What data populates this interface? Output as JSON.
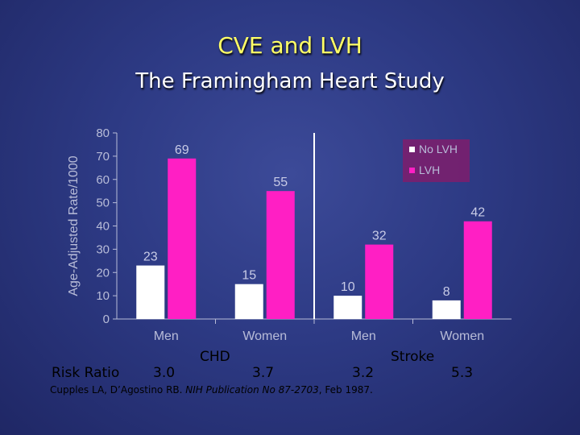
{
  "slide": {
    "title": "CVE and LVH",
    "subtitle": "The Framingham Heart Study",
    "risk_ratio_label": "Risk Ratio",
    "risk_ratios": [
      "3.0",
      "3.7",
      "3.2",
      "5.3"
    ],
    "groups": [
      "CHD",
      "Stroke"
    ],
    "citation_authors": "Cupples LA, D’Agostino RB. ",
    "citation_pub": "NIH Publication No 87-2703",
    "citation_date": ", Feb 1987."
  },
  "colors": {
    "no_lvh": "#ffffff",
    "lvh": "#ff1fc4",
    "axis_text": "#b8bcd8",
    "value_text": "#c8cbe6"
  },
  "chart_data": {
    "type": "bar",
    "categories": [
      "Men",
      "Women",
      "Men",
      "Women"
    ],
    "series": [
      {
        "name": "No LVH",
        "values": [
          23,
          15,
          10,
          8
        ]
      },
      {
        "name": "LVH",
        "values": [
          69,
          55,
          32,
          42
        ]
      }
    ],
    "ylabel": "Age-Adjusted Rate/1000",
    "ylim": [
      0,
      80
    ],
    "yticks": [
      0,
      10,
      20,
      30,
      40,
      50,
      60,
      70,
      80
    ],
    "legend_position": "top-right"
  }
}
